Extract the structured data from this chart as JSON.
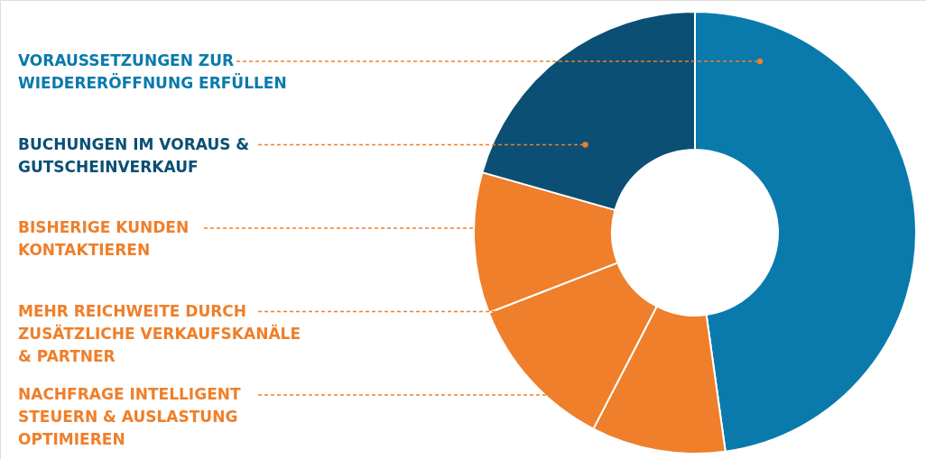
{
  "chart_data": {
    "type": "donut",
    "categories": [
      "VORAUSSETZUNGEN ZUR WIEDERERÖFFNUNG ERFÜLLEN",
      "NACHFRAGE INTELLIGENT STEUERN & AUSLASTUNG OPTIMIEREN",
      "MEHR REICHWEITE DURCH ZUSÄTZLICHE VERKAUFSKANÄLE & PARTNER",
      "BISHERIGE KUNDEN KONTAKTIEREN",
      "BUCHUNGEN IM VORAUS & GUTSCHEINVERKAUF"
    ],
    "values": [
      47.8,
      9.8,
      11.5,
      10.3,
      20.6
    ],
    "colors": [
      "#0a7aad",
      "#ef7f2a",
      "#ef7f2a",
      "#ef7f2a",
      "#0b4f74"
    ]
  }
}
